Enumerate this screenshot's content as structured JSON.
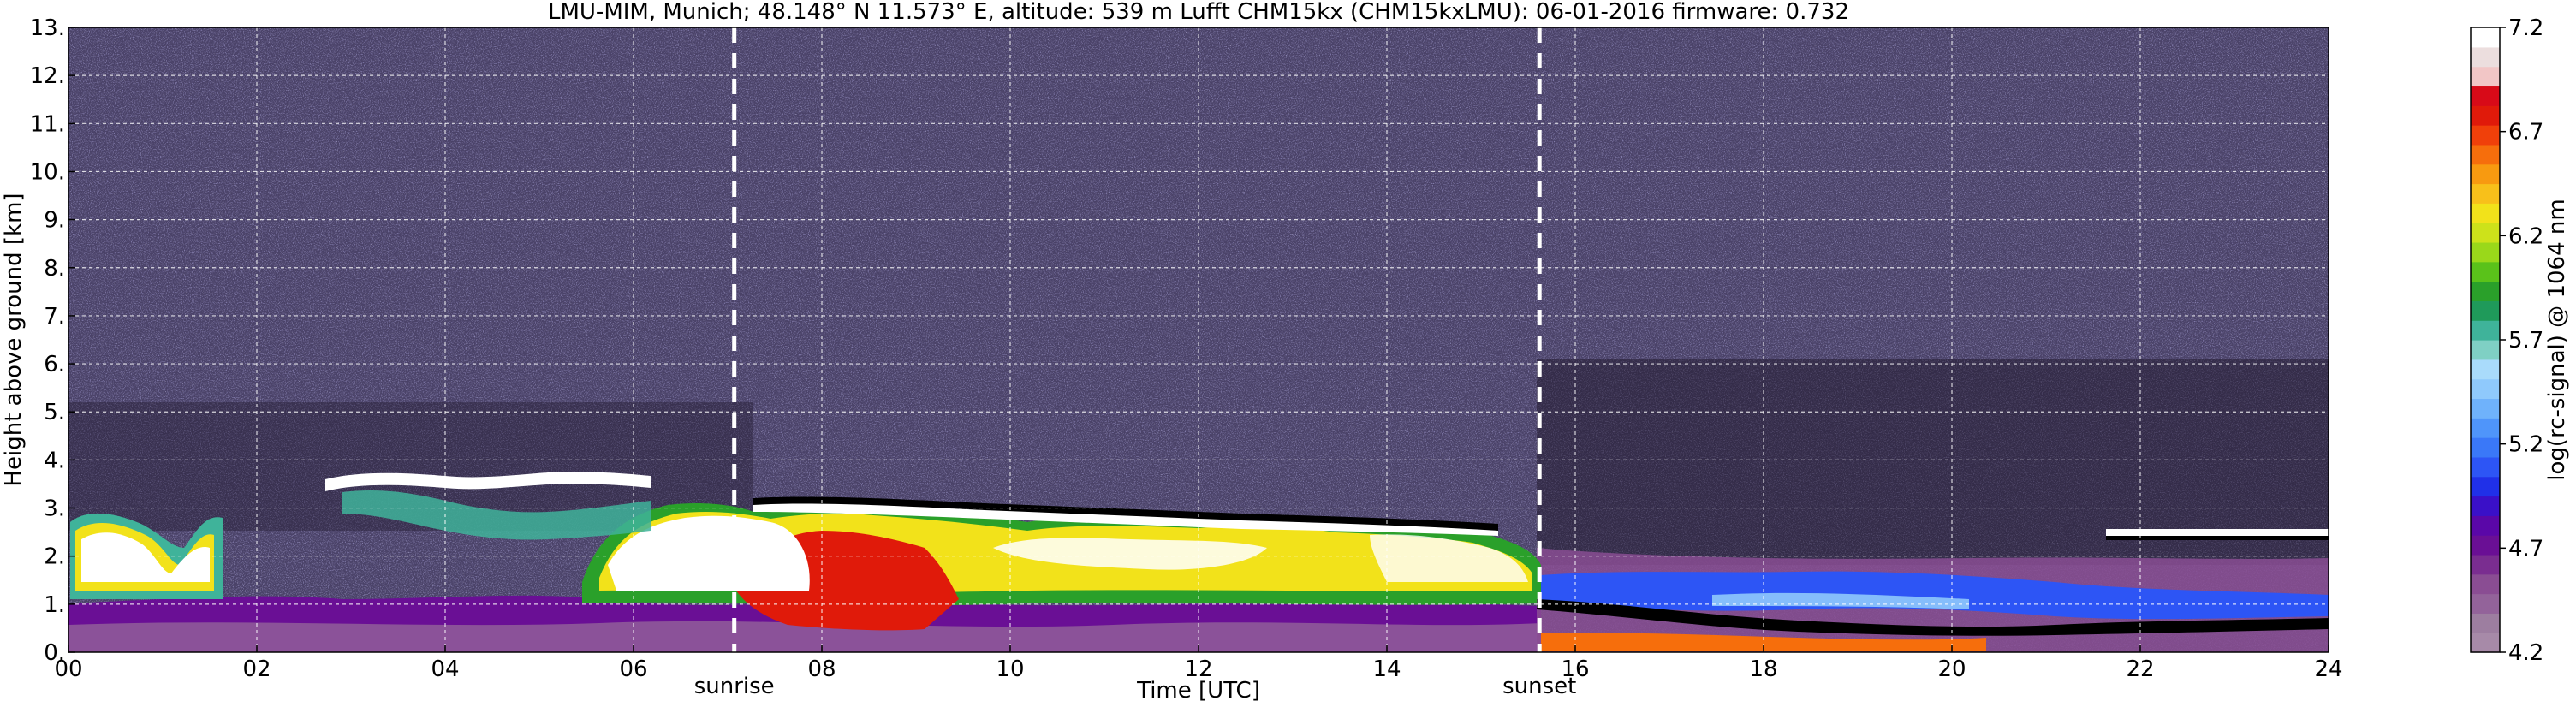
{
  "chart_data": {
    "type": "heatmap",
    "title": "LMU-MIM, Munich; 48.148° N 11.573° E, altitude: 539 m    Lufft CHM15kx (CHM15kxLMU): 06-01-2016    firmware: 0.732",
    "xlabel": "Time [UTC]",
    "ylabel": "Height above ground [km]",
    "colorbar_label": "log(rc-signal) @ 1064 nm",
    "xlim": [
      0,
      24
    ],
    "ylim": [
      0,
      13
    ],
    "x_ticks": [
      0,
      2,
      4,
      6,
      8,
      10,
      12,
      14,
      16,
      18,
      20,
      22,
      24
    ],
    "x_tick_labels": [
      "00",
      "02",
      "04",
      "06",
      "08",
      "10",
      "12",
      "14",
      "16",
      "18",
      "20",
      "22",
      "24"
    ],
    "y_ticks": [
      0,
      1,
      2,
      3,
      4,
      5,
      6,
      7,
      8,
      9,
      10,
      11,
      12,
      13
    ],
    "y_tick_labels": [
      "0.",
      "1.",
      "2.",
      "3.",
      "4.",
      "5.",
      "6.",
      "7.",
      "8.",
      "9.",
      "10.",
      "11.",
      "12.",
      "13."
    ],
    "colorbar_range": [
      4.2,
      7.2
    ],
    "colorbar_ticks": [
      4.2,
      4.7,
      5.2,
      5.7,
      6.2,
      6.7,
      7.2
    ],
    "colorbar_tick_labels": [
      "4.2",
      "4.7",
      "5.2",
      "5.7",
      "6.2",
      "6.7",
      "7.2"
    ],
    "grid": true,
    "markers": [
      {
        "label": "sunrise",
        "time": 7.07
      },
      {
        "label": "sunset",
        "time": 15.62
      }
    ],
    "colormap": [
      "#a78aa8",
      "#9d7ea0",
      "#93639a",
      "#8a4d93",
      "#7a2d90",
      "#6a0f95",
      "#5a07a8",
      "#3a10c8",
      "#2030e8",
      "#2d55f5",
      "#3a78f8",
      "#4f95fa",
      "#6fb2fb",
      "#8fc9fc",
      "#a9dbfb",
      "#7fd0c4",
      "#3fb39a",
      "#1f9a5a",
      "#2aa02a",
      "#5ac21a",
      "#9ad81a",
      "#cde21a",
      "#f2e21a",
      "#f8c01a",
      "#f89a10",
      "#f66e0c",
      "#f0400a",
      "#e01a0a",
      "#d80a18",
      "#f2c6c6",
      "#ecdede",
      "#ffffff"
    ],
    "features": [
      {
        "name": "boundary-layer",
        "note": "purple/violet low-level aerosol layer below about 1 km throughout the day"
      },
      {
        "name": "residual-cloud-layer",
        "note": "white/yellow/red strong backscatter 1.5-3 km from 00 to 16 UTC"
      },
      {
        "name": "stratocumulus-deck",
        "note": "thin white layer near 2.2-2.5 km after 21 UTC"
      },
      {
        "name": "night-layer",
        "note": "blue band around 1 km between 16 and 21 UTC"
      }
    ]
  }
}
